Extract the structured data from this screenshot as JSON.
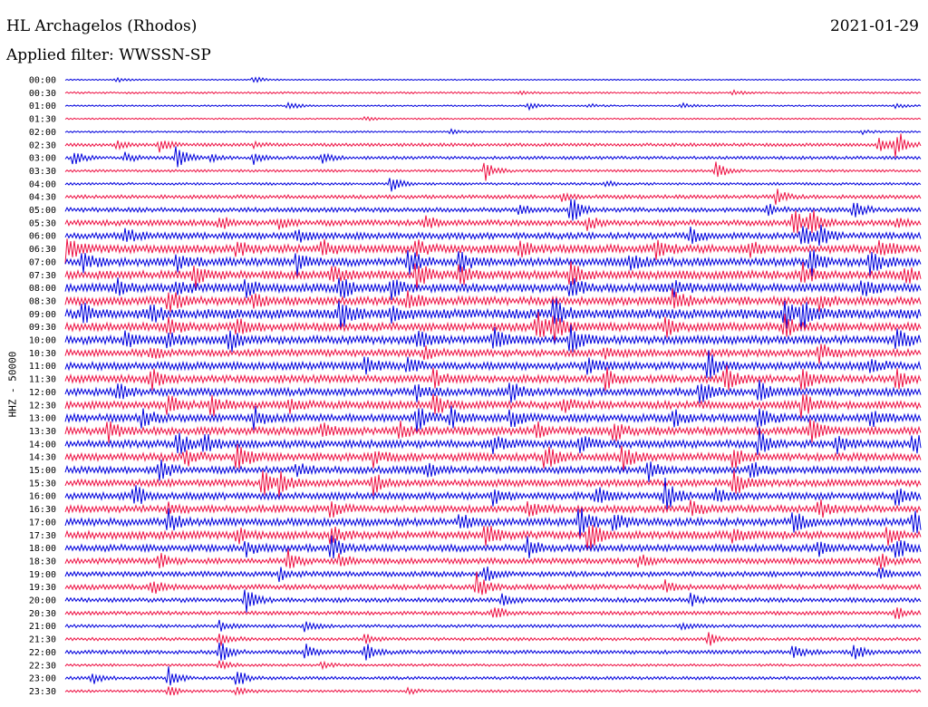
{
  "header": {
    "station": "HL Archagelos (Rhodos)",
    "date": "2021-01-29",
    "filter_prefix": "Applied filter:",
    "filter_name": "WWSSN-SP"
  },
  "chart_data": {
    "type": "line",
    "title": "HL Archagelos (Rhodos)",
    "subtitle": "Applied filter: WWSSN-SP",
    "date": "2021-01-29",
    "ylabel": "HHZ - 50000",
    "row_interval_minutes": 30,
    "colors": {
      "even_rows": "#0000dd",
      "odd_rows": "#ee1144"
    },
    "rows": [
      {
        "label": "00:00",
        "level": 0.1,
        "events": [
          [
            0.22,
            0.6
          ],
          [
            0.06,
            0.4
          ]
        ]
      },
      {
        "label": "00:30",
        "level": 0.15,
        "events": [
          [
            0.53,
            0.3
          ],
          [
            0.78,
            0.3
          ]
        ]
      },
      {
        "label": "01:00",
        "level": 0.12,
        "events": [
          [
            0.26,
            0.7
          ],
          [
            0.54,
            0.6
          ],
          [
            0.61,
            0.4
          ],
          [
            0.72,
            0.4
          ],
          [
            0.97,
            0.4
          ]
        ]
      },
      {
        "label": "01:30",
        "level": 0.12,
        "events": [
          [
            0.35,
            0.3
          ]
        ]
      },
      {
        "label": "02:00",
        "level": 0.14,
        "events": [
          [
            0.45,
            0.3
          ],
          [
            0.93,
            0.3
          ]
        ]
      },
      {
        "label": "02:30",
        "level": 0.25,
        "events": [
          [
            0.06,
            0.7
          ],
          [
            0.11,
            1.1
          ],
          [
            0.22,
            0.4
          ],
          [
            0.97,
            2.6
          ],
          [
            0.95,
            1.4
          ]
        ]
      },
      {
        "label": "03:00",
        "level": 0.25,
        "events": [
          [
            0.01,
            1.5
          ],
          [
            0.07,
            0.8
          ],
          [
            0.13,
            2.3
          ],
          [
            0.17,
            0.6
          ],
          [
            0.22,
            0.9
          ],
          [
            0.3,
            0.8
          ]
        ]
      },
      {
        "label": "03:30",
        "level": 0.2,
        "events": [
          [
            0.49,
            1.8
          ],
          [
            0.76,
            1.5
          ]
        ]
      },
      {
        "label": "04:00",
        "level": 0.2,
        "events": [
          [
            0.38,
            1.5
          ],
          [
            0.63,
            0.5
          ]
        ]
      },
      {
        "label": "04:30",
        "level": 0.3,
        "events": [
          [
            0.58,
            0.6
          ],
          [
            0.83,
            1.3
          ]
        ]
      },
      {
        "label": "05:00",
        "level": 0.35,
        "events": [
          [
            0.53,
            0.8
          ],
          [
            0.59,
            2.6
          ],
          [
            0.82,
            0.9
          ],
          [
            0.92,
            1.9
          ]
        ]
      },
      {
        "label": "05:30",
        "level": 0.45,
        "events": [
          [
            0.18,
            1.3
          ],
          [
            0.25,
            0.8
          ],
          [
            0.42,
            1.1
          ],
          [
            0.61,
            1.0
          ],
          [
            0.85,
            2.4
          ],
          [
            0.87,
            2.2
          ],
          [
            0.97,
            0.8
          ]
        ]
      },
      {
        "label": "06:00",
        "level": 0.5,
        "events": [
          [
            0.07,
            1.2
          ],
          [
            0.27,
            1.0
          ],
          [
            0.73,
            1.0
          ],
          [
            0.86,
            2.2
          ],
          [
            0.88,
            2.0
          ]
        ]
      },
      {
        "label": "06:30",
        "level": 0.65,
        "events": [
          [
            0.0,
            2.2
          ],
          [
            0.2,
            1.0
          ],
          [
            0.3,
            1.3
          ],
          [
            0.41,
            1.2
          ],
          [
            0.53,
            1.2
          ],
          [
            0.69,
            1.3
          ],
          [
            0.8,
            1.0
          ],
          [
            0.95,
            1.6
          ]
        ]
      },
      {
        "label": "07:00",
        "level": 0.65,
        "events": [
          [
            0.02,
            1.5
          ],
          [
            0.13,
            1.2
          ],
          [
            0.27,
            2.0
          ],
          [
            0.4,
            2.4
          ],
          [
            0.46,
            1.6
          ],
          [
            0.66,
            1.2
          ],
          [
            0.87,
            2.2
          ],
          [
            0.94,
            2.0
          ]
        ]
      },
      {
        "label": "07:30",
        "level": 0.65,
        "events": [
          [
            0.15,
            2.0
          ],
          [
            0.31,
            1.6
          ],
          [
            0.41,
            2.4
          ],
          [
            0.46,
            1.8
          ],
          [
            0.59,
            2.0
          ],
          [
            0.86,
            1.6
          ],
          [
            0.98,
            1.6
          ]
        ]
      },
      {
        "label": "08:00",
        "level": 0.65,
        "events": [
          [
            0.06,
            1.2
          ],
          [
            0.13,
            1.4
          ],
          [
            0.21,
            1.6
          ],
          [
            0.32,
            2.0
          ],
          [
            0.38,
            1.8
          ],
          [
            0.59,
            1.8
          ],
          [
            0.71,
            1.4
          ],
          [
            0.93,
            1.4
          ]
        ]
      },
      {
        "label": "08:30",
        "level": 0.65,
        "events": [
          [
            0.12,
            2.0
          ],
          [
            0.22,
            1.0
          ],
          [
            0.4,
            1.2
          ],
          [
            0.71,
            2.0
          ],
          [
            0.88,
            1.2
          ]
        ]
      },
      {
        "label": "09:00",
        "level": 0.75,
        "events": [
          [
            0.02,
            1.6
          ],
          [
            0.1,
            1.2
          ],
          [
            0.32,
            2.6
          ],
          [
            0.38,
            1.6
          ],
          [
            0.57,
            2.6
          ],
          [
            0.84,
            2.0
          ],
          [
            0.86,
            2.4
          ]
        ]
      },
      {
        "label": "09:30",
        "level": 0.65,
        "events": [
          [
            0.12,
            1.2
          ],
          [
            0.2,
            1.3
          ],
          [
            0.55,
            2.4
          ],
          [
            0.57,
            2.2
          ],
          [
            0.7,
            1.4
          ],
          [
            0.84,
            1.6
          ]
        ]
      },
      {
        "label": "10:00",
        "level": 0.65,
        "events": [
          [
            0.07,
            1.0
          ],
          [
            0.12,
            1.4
          ],
          [
            0.19,
            2.2
          ],
          [
            0.41,
            1.6
          ],
          [
            0.5,
            2.0
          ],
          [
            0.59,
            2.4
          ],
          [
            0.97,
            2.0
          ]
        ]
      },
      {
        "label": "10:30",
        "level": 0.55,
        "events": [
          [
            0.1,
            1.0
          ],
          [
            0.42,
            1.2
          ],
          [
            0.63,
            1.0
          ],
          [
            0.88,
            1.6
          ]
        ]
      },
      {
        "label": "11:00",
        "level": 0.6,
        "events": [
          [
            0.35,
            2.0
          ],
          [
            0.4,
            1.2
          ],
          [
            0.61,
            1.4
          ],
          [
            0.75,
            2.2
          ],
          [
            0.94,
            1.6
          ]
        ]
      },
      {
        "label": "11:30",
        "level": 0.6,
        "events": [
          [
            0.1,
            1.6
          ],
          [
            0.43,
            1.4
          ],
          [
            0.63,
            2.0
          ],
          [
            0.77,
            2.2
          ],
          [
            0.86,
            1.8
          ],
          [
            0.97,
            1.6
          ]
        ]
      },
      {
        "label": "12:00",
        "level": 0.6,
        "events": [
          [
            0.06,
            1.4
          ],
          [
            0.41,
            1.2
          ],
          [
            0.52,
            1.6
          ],
          [
            0.74,
            2.2
          ],
          [
            0.81,
            1.6
          ]
        ]
      },
      {
        "label": "12:30",
        "level": 0.6,
        "events": [
          [
            0.12,
            2.0
          ],
          [
            0.17,
            1.8
          ],
          [
            0.26,
            1.2
          ],
          [
            0.43,
            2.0
          ],
          [
            0.58,
            1.4
          ],
          [
            0.86,
            2.0
          ]
        ]
      },
      {
        "label": "13:00",
        "level": 0.6,
        "events": [
          [
            0.09,
            1.6
          ],
          [
            0.22,
            1.6
          ],
          [
            0.41,
            2.0
          ],
          [
            0.45,
            1.6
          ],
          [
            0.52,
            1.4
          ],
          [
            0.71,
            1.6
          ],
          [
            0.81,
            2.0
          ],
          [
            0.94,
            1.4
          ]
        ]
      },
      {
        "label": "13:30",
        "level": 0.6,
        "events": [
          [
            0.05,
            1.6
          ],
          [
            0.3,
            1.2
          ],
          [
            0.39,
            1.4
          ],
          [
            0.55,
            1.4
          ],
          [
            0.64,
            1.6
          ],
          [
            0.87,
            2.2
          ]
        ]
      },
      {
        "label": "14:00",
        "level": 0.6,
        "events": [
          [
            0.13,
            2.0
          ],
          [
            0.16,
            2.0
          ],
          [
            0.5,
            1.4
          ],
          [
            0.6,
            1.6
          ],
          [
            0.81,
            2.2
          ],
          [
            0.9,
            1.6
          ],
          [
            0.99,
            1.6
          ]
        ]
      },
      {
        "label": "14:30",
        "level": 0.6,
        "events": [
          [
            0.14,
            1.8
          ],
          [
            0.2,
            2.8
          ],
          [
            0.36,
            1.4
          ],
          [
            0.56,
            2.0
          ],
          [
            0.65,
            2.2
          ],
          [
            0.78,
            1.8
          ]
        ]
      },
      {
        "label": "15:00",
        "level": 0.55,
        "events": [
          [
            0.11,
            1.6
          ],
          [
            0.27,
            1.2
          ],
          [
            0.42,
            1.2
          ],
          [
            0.68,
            1.6
          ],
          [
            0.8,
            1.6
          ]
        ]
      },
      {
        "label": "15:30",
        "level": 0.55,
        "events": [
          [
            0.23,
            2.0
          ],
          [
            0.25,
            1.6
          ],
          [
            0.36,
            1.6
          ],
          [
            0.78,
            2.2
          ]
        ]
      },
      {
        "label": "16:00",
        "level": 0.55,
        "events": [
          [
            0.08,
            1.8
          ],
          [
            0.5,
            1.6
          ],
          [
            0.62,
            1.4
          ],
          [
            0.7,
            2.6
          ],
          [
            0.76,
            1.2
          ],
          [
            0.97,
            1.4
          ]
        ]
      },
      {
        "label": "16:30",
        "level": 0.55,
        "events": [
          [
            0.12,
            1.2
          ],
          [
            0.31,
            1.4
          ],
          [
            0.54,
            1.2
          ],
          [
            0.73,
            1.4
          ],
          [
            0.88,
            1.4
          ]
        ]
      },
      {
        "label": "17:00",
        "level": 0.6,
        "events": [
          [
            0.12,
            1.8
          ],
          [
            0.46,
            1.2
          ],
          [
            0.6,
            2.6
          ],
          [
            0.64,
            1.6
          ],
          [
            0.85,
            1.6
          ],
          [
            0.99,
            2.4
          ]
        ]
      },
      {
        "label": "17:30",
        "level": 0.6,
        "events": [
          [
            0.2,
            1.2
          ],
          [
            0.31,
            1.6
          ],
          [
            0.49,
            2.0
          ],
          [
            0.61,
            2.6
          ],
          [
            0.78,
            1.6
          ],
          [
            0.96,
            1.6
          ]
        ]
      },
      {
        "label": "18:00",
        "level": 0.55,
        "events": [
          [
            0.21,
            1.2
          ],
          [
            0.31,
            1.8
          ],
          [
            0.54,
            1.6
          ],
          [
            0.88,
            1.2
          ],
          [
            0.97,
            2.0
          ]
        ]
      },
      {
        "label": "18:30",
        "level": 0.45,
        "events": [
          [
            0.11,
            1.2
          ],
          [
            0.26,
            1.6
          ],
          [
            0.32,
            1.2
          ],
          [
            0.67,
            1.0
          ],
          [
            0.95,
            1.2
          ]
        ]
      },
      {
        "label": "19:00",
        "level": 0.4,
        "events": [
          [
            0.25,
            1.0
          ],
          [
            0.49,
            1.2
          ],
          [
            0.95,
            1.0
          ]
        ]
      },
      {
        "label": "19:30",
        "level": 0.4,
        "events": [
          [
            0.1,
            1.2
          ],
          [
            0.48,
            2.2
          ],
          [
            0.7,
            1.0
          ]
        ]
      },
      {
        "label": "20:00",
        "level": 0.35,
        "events": [
          [
            0.21,
            2.0
          ],
          [
            0.51,
            1.2
          ],
          [
            0.73,
            1.0
          ]
        ]
      },
      {
        "label": "20:30",
        "level": 0.3,
        "events": [
          [
            0.5,
            1.4
          ],
          [
            0.97,
            1.0
          ]
        ]
      },
      {
        "label": "21:00",
        "level": 0.25,
        "events": [
          [
            0.18,
            0.8
          ],
          [
            0.28,
            0.9
          ],
          [
            0.72,
            0.5
          ]
        ]
      },
      {
        "label": "21:30",
        "level": 0.25,
        "events": [
          [
            0.18,
            1.4
          ],
          [
            0.35,
            0.8
          ],
          [
            0.75,
            1.4
          ]
        ]
      },
      {
        "label": "22:00",
        "level": 0.3,
        "events": [
          [
            0.18,
            2.0
          ],
          [
            0.28,
            1.2
          ],
          [
            0.35,
            1.6
          ],
          [
            0.85,
            1.4
          ],
          [
            0.92,
            1.6
          ]
        ]
      },
      {
        "label": "22:30",
        "level": 0.2,
        "events": [
          [
            0.18,
            0.8
          ],
          [
            0.3,
            0.6
          ]
        ]
      },
      {
        "label": "23:00",
        "level": 0.25,
        "events": [
          [
            0.03,
            1.0
          ],
          [
            0.12,
            2.0
          ],
          [
            0.2,
            1.6
          ]
        ]
      },
      {
        "label": "23:30",
        "level": 0.2,
        "events": [
          [
            0.12,
            1.0
          ],
          [
            0.2,
            0.8
          ],
          [
            0.4,
            0.5
          ]
        ]
      }
    ]
  }
}
